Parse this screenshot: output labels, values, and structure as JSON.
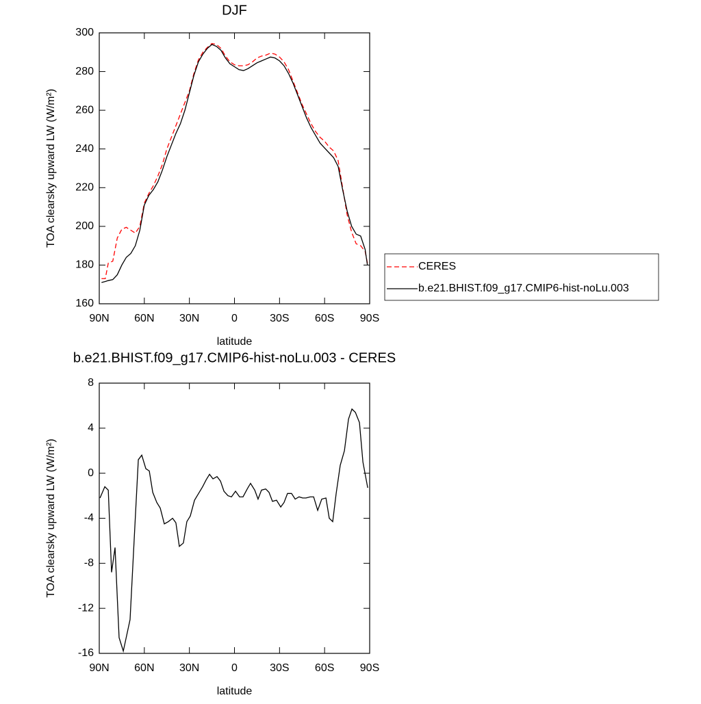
{
  "chart_data": [
    {
      "type": "line",
      "title": "DJF",
      "xlabel": "latitude",
      "ylabel": "TOA clearsky upward LW (W/m²)",
      "xlim": [
        90,
        -90
      ],
      "xticks": [
        {
          "value": 90,
          "label": "90N"
        },
        {
          "value": 60,
          "label": "60N"
        },
        {
          "value": 30,
          "label": "30N"
        },
        0,
        {
          "value": -30,
          "label": "30S"
        },
        {
          "value": -60,
          "label": "60S"
        },
        {
          "value": -90,
          "label": "90S"
        }
      ],
      "ylim": [
        160,
        300
      ],
      "yticks": [
        160,
        180,
        200,
        220,
        240,
        260,
        280,
        300
      ],
      "legend": "right",
      "x": [
        88.5,
        86,
        84,
        81,
        78,
        75,
        72,
        69,
        66,
        63,
        60,
        57,
        54,
        51,
        48,
        45,
        42,
        39,
        36,
        33,
        30,
        27,
        24,
        21,
        18,
        15,
        12,
        9,
        6,
        3,
        0,
        -3,
        -6,
        -9,
        -12,
        -15,
        -18,
        -21,
        -24,
        -27,
        -30,
        -33,
        -36,
        -39,
        -42,
        -45,
        -48,
        -51,
        -54,
        -57,
        -60,
        -63,
        -66,
        -69,
        -72,
        -75,
        -78,
        -81,
        -84,
        -87,
        -88.5
      ],
      "series": [
        {
          "name": "CERES",
          "color": "#ff0000",
          "dash": true,
          "values": [
            173,
            173,
            181,
            182,
            194,
            198.5,
            199.5,
            198,
            196.5,
            200,
            212,
            217,
            221,
            226,
            232,
            240,
            246,
            252,
            258,
            264,
            270,
            279,
            286,
            290,
            292.5,
            294.5,
            294,
            292,
            288,
            285,
            283.5,
            283,
            283,
            283.5,
            285,
            287,
            288,
            288.5,
            289.5,
            289,
            287.5,
            285,
            281,
            275,
            269,
            263,
            258,
            253,
            249,
            246,
            244,
            241,
            239,
            234,
            220,
            206,
            197,
            191,
            190,
            187,
            181
          ]
        },
        {
          "name": "b.e21.BHIST.f09_g17.CMIP6-hist-noLu.003",
          "color": "#000000",
          "dash": false,
          "values": [
            171,
            171.5,
            172,
            172.5,
            175,
            180,
            184,
            186,
            190,
            198,
            211,
            216,
            219,
            223,
            229,
            236,
            242,
            248,
            253,
            260,
            269,
            278,
            285,
            289,
            292,
            294,
            293,
            291,
            287,
            284,
            282.5,
            281,
            280.5,
            281.5,
            283,
            284.5,
            285.5,
            286.5,
            287.5,
            287,
            285.5,
            283,
            279,
            274,
            268,
            262,
            256,
            251,
            247,
            243,
            240.5,
            238,
            235.5,
            231,
            219,
            208,
            200,
            196,
            195,
            188,
            180
          ]
        }
      ]
    },
    {
      "type": "line",
      "title": "b.e21.BHIST.f09_g17.CMIP6-hist-noLu.003 - CERES",
      "xlabel": "latitude",
      "ylabel": "TOA clearsky upward LW (W/m²)",
      "xlim": [
        90,
        -90
      ],
      "xticks": [
        {
          "value": 90,
          "label": "90N"
        },
        {
          "value": 60,
          "label": "60N"
        },
        {
          "value": 30,
          "label": "30N"
        },
        0,
        {
          "value": -30,
          "label": "30S"
        },
        {
          "value": -60,
          "label": "60S"
        },
        {
          "value": -90,
          "label": "90S"
        }
      ],
      "ylim": [
        -16,
        8
      ],
      "yticks": [
        -16,
        -12,
        -8,
        -4,
        0,
        4,
        8
      ],
      "x": [
        89.5,
        86.3,
        84,
        81.8,
        79.5,
        76.8,
        74,
        69.5,
        66.8,
        64,
        61.7,
        59,
        56.7,
        54.4,
        51.7,
        49.4,
        46.7,
        44,
        41.2,
        39,
        36.7,
        34,
        31.7,
        29.4,
        26.6,
        23.9,
        21.2,
        18.9,
        16.6,
        14.3,
        11.6,
        9.3,
        7,
        4.3,
        2,
        -0.7,
        -3.4,
        -5.7,
        -8.5,
        -10.7,
        -13.5,
        -15.7,
        -18,
        -20.8,
        -23,
        -25.3,
        -28,
        -30.8,
        -33,
        -35.3,
        -38,
        -40.4,
        -43,
        -45.4,
        -47.6,
        -50.4,
        -52.7,
        -55.4,
        -58.1,
        -60.9,
        -63.1,
        -65.4,
        -67.7,
        -70.4,
        -73.2,
        -75.9,
        -78.2,
        -80.5,
        -83.2,
        -85.5,
        -88.7
      ],
      "series": [
        {
          "color": "#000000",
          "dash": false,
          "values": [
            -2.2,
            -1.2,
            -1.5,
            -8.8,
            -6.6,
            -14.6,
            -15.8,
            -13.0,
            -6.0,
            1.2,
            1.6,
            0.4,
            0.2,
            -1.7,
            -2.6,
            -3.1,
            -4.5,
            -4.3,
            -4.0,
            -4.4,
            -6.5,
            -6.2,
            -4.3,
            -3.8,
            -2.4,
            -1.8,
            -1.2,
            -0.6,
            -0.1,
            -0.5,
            -0.3,
            -0.7,
            -1.6,
            -2.0,
            -2.1,
            -1.6,
            -2.1,
            -2.1,
            -1.4,
            -0.9,
            -1.5,
            -2.3,
            -1.5,
            -1.4,
            -1.7,
            -2.5,
            -2.4,
            -3.0,
            -2.6,
            -1.8,
            -1.8,
            -2.3,
            -2.1,
            -2.2,
            -2.2,
            -2.1,
            -2.1,
            -3.3,
            -2.3,
            -2.2,
            -4.0,
            -4.3,
            -1.8,
            0.7,
            2.0,
            4.8,
            5.7,
            5.4,
            4.5,
            1.0,
            -1.3
          ]
        }
      ]
    }
  ]
}
